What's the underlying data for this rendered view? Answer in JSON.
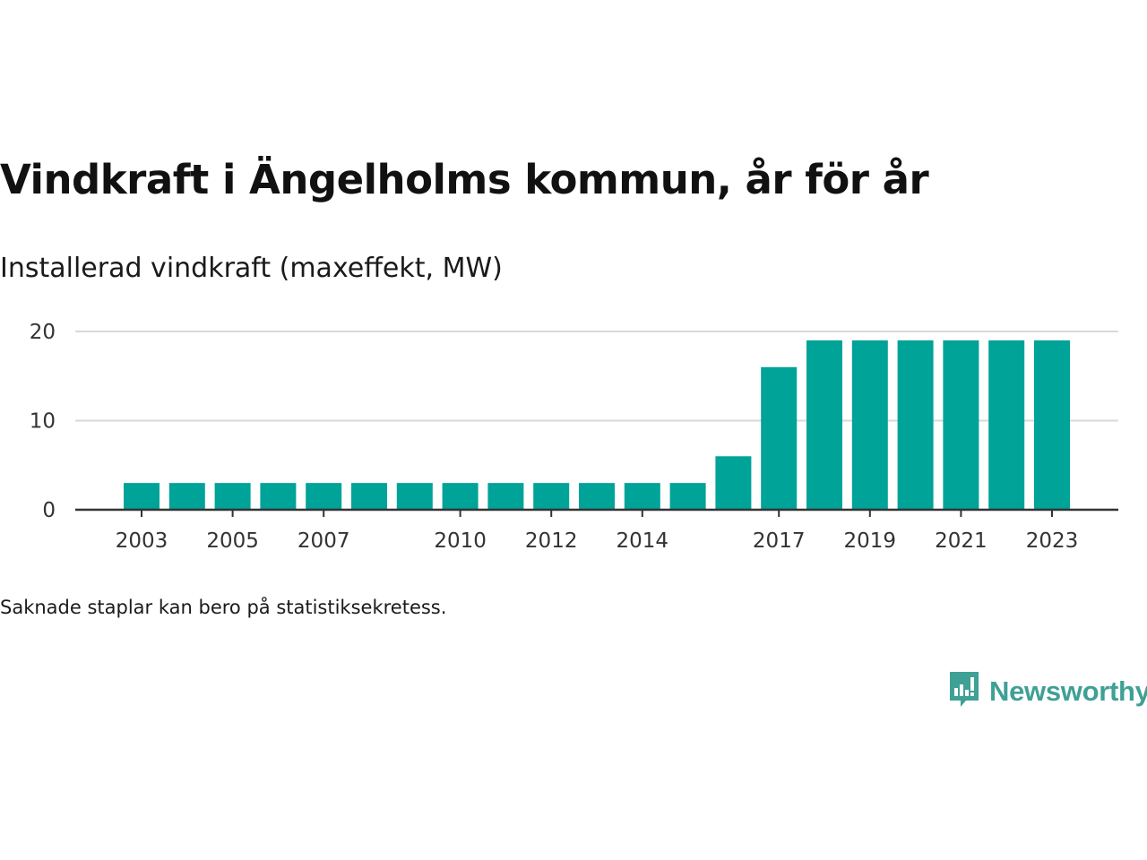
{
  "header": {
    "title": "Vindkraft i Ängelholms kommun, år för år",
    "subtitle": "Installerad vindkraft (maxeffekt, MW)"
  },
  "footer": {
    "note": "Saknade staplar kan bero på statistiksekretess."
  },
  "logo": {
    "text": "Newsworthy",
    "icon": "bar-chart-speech-bubble-icon",
    "color": "#3fa095"
  },
  "colors": {
    "bar": "#00a398",
    "grid": "#d9d9d9",
    "axis": "#333333"
  },
  "chart_data": {
    "type": "bar",
    "categories": [
      "2003",
      "2004",
      "2005",
      "2006",
      "2007",
      "2008",
      "2009",
      "2010",
      "2011",
      "2012",
      "2013",
      "2014",
      "2015",
      "2016",
      "2017",
      "2018",
      "2019",
      "2020",
      "2021",
      "2022",
      "2023"
    ],
    "values": [
      3,
      3,
      3,
      3,
      3,
      3,
      3,
      3,
      3,
      3,
      3,
      3,
      3,
      6,
      16,
      19,
      19,
      19,
      19,
      19,
      19
    ],
    "x_tick_labels": [
      "2003",
      "2005",
      "2007",
      "2010",
      "2012",
      "2014",
      "2017",
      "2019",
      "2021",
      "2023"
    ],
    "y_ticks": [
      0,
      10,
      20
    ],
    "ylim": [
      0,
      20
    ],
    "grid": true,
    "legend": "none"
  }
}
